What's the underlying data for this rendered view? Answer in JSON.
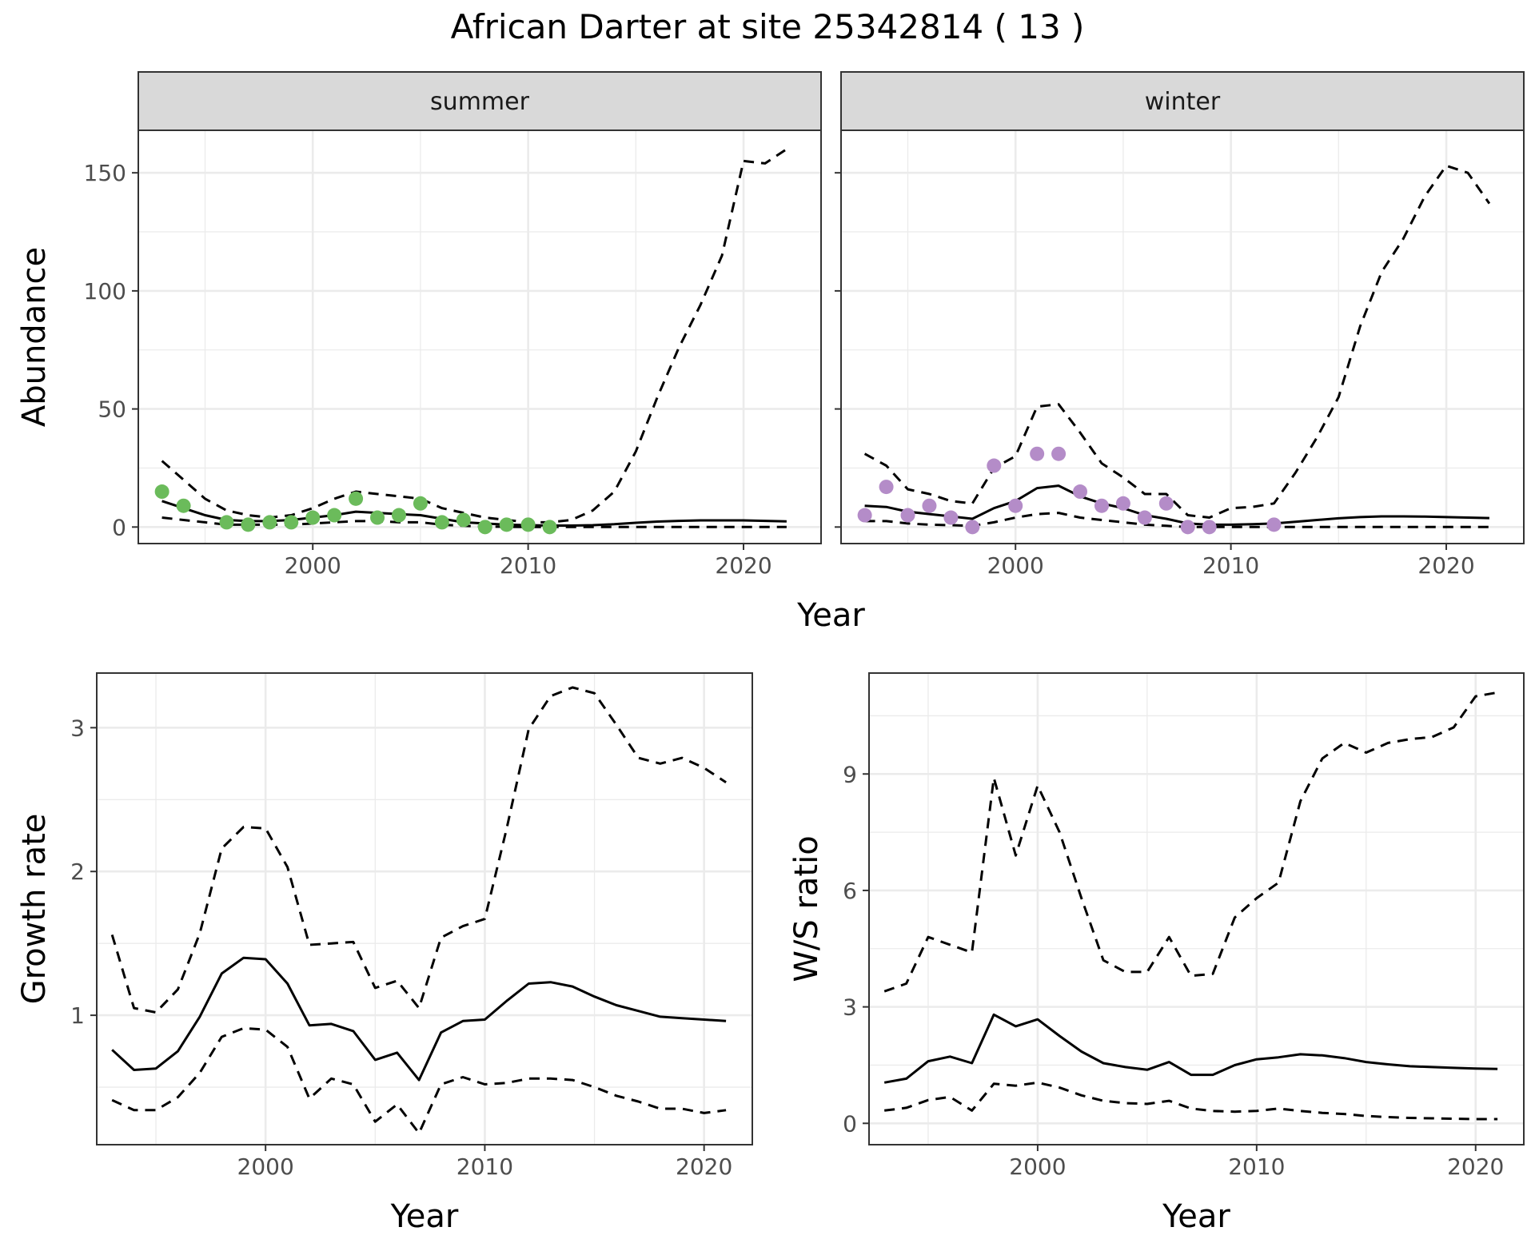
{
  "title": "African Darter at site 25342814 ( 13 )",
  "colors": {
    "summer_points": "#6BBB5B",
    "winter_points": "#B48CC8",
    "strip_fill": "#D9D9D9",
    "grid": "#EBEBEB",
    "line": "#000000"
  },
  "chart_data": [
    {
      "type": "line",
      "xlabel": "Year",
      "ylabel": "Abundance",
      "ylim": [
        -7,
        168
      ],
      "xlim": [
        1991.9,
        2023.6
      ],
      "xticks": [
        2000,
        2010,
        2020
      ],
      "yticks": [
        0,
        50,
        100,
        150
      ],
      "grid": true,
      "facets": [
        {
          "strip": "summer",
          "estimate": {
            "x": [
              1993,
              1994,
              1995,
              1996,
              1997,
              1998,
              1999,
              2000,
              2001,
              2002,
              2003,
              2004,
              2005,
              2006,
              2007,
              2008,
              2009,
              2010,
              2011,
              2012,
              2013,
              2014,
              2015,
              2016,
              2017,
              2018,
              2019,
              2020,
              2021,
              2022
            ],
            "y": [
              11,
              8,
              5,
              3,
              2.5,
              2.5,
              3,
              4,
              5,
              6.5,
              6,
              5.5,
              5,
              3.5,
              2,
              1.5,
              1,
              0.8,
              0.6,
              0.6,
              0.8,
              1.2,
              1.8,
              2.3,
              2.6,
              2.8,
              2.8,
              2.8,
              2.6,
              2.4
            ]
          },
          "upper": {
            "x": [
              1993,
              1994,
              1995,
              1996,
              1997,
              1998,
              1999,
              2000,
              2001,
              2002,
              2003,
              2004,
              2005,
              2006,
              2007,
              2008,
              2009,
              2010,
              2011,
              2012,
              2013,
              2014,
              2015,
              2016,
              2017,
              2018,
              2019,
              2020,
              2021,
              2022
            ],
            "y": [
              28,
              20,
              12,
              7,
              5,
              4,
              5,
              8,
              12,
              15,
              14,
              13,
              12,
              8,
              6,
              4,
              3,
              2,
              2,
              3,
              7,
              15,
              32,
              55,
              76,
              94,
              115,
              155,
              154,
              160
            ]
          },
          "lower": {
            "x": [
              1993,
              1994,
              1995,
              1996,
              1997,
              1998,
              1999,
              2000,
              2001,
              2002,
              2003,
              2004,
              2005,
              2006,
              2007,
              2008,
              2009,
              2010,
              2011,
              2012,
              2013,
              2014,
              2015,
              2016,
              2017,
              2018,
              2019,
              2020,
              2021,
              2022
            ],
            "y": [
              4,
              3,
              2,
              1,
              1,
              1,
              1,
              1.5,
              2,
              2.5,
              2.5,
              2,
              2,
              1,
              0.5,
              0.2,
              0.1,
              0,
              0,
              0,
              0,
              0,
              0,
              0,
              0,
              0,
              0,
              0,
              0,
              0
            ]
          },
          "observed": {
            "x": [
              1993,
              1994,
              1996,
              1997,
              1998,
              1999,
              2000,
              2001,
              2002,
              2003,
              2004,
              2005,
              2006,
              2007,
              2008,
              2009,
              2010,
              2011
            ],
            "y": [
              15,
              9,
              2,
              1,
              2,
              2,
              4,
              5,
              12,
              4,
              5,
              10,
              2,
              3,
              0,
              1,
              1,
              0
            ]
          }
        },
        {
          "strip": "winter",
          "estimate": {
            "x": [
              1993,
              1994,
              1995,
              1996,
              1997,
              1998,
              1999,
              2000,
              2001,
              2002,
              2003,
              2004,
              2005,
              2006,
              2007,
              2008,
              2009,
              2010,
              2011,
              2012,
              2013,
              2014,
              2015,
              2016,
              2017,
              2018,
              2019,
              2020,
              2021,
              2022
            ],
            "y": [
              9,
              8.5,
              6.5,
              5.5,
              4.5,
              3.5,
              8,
              11,
              16.5,
              17.5,
              13,
              10,
              8,
              5,
              3.5,
              1.5,
              1,
              1,
              1.2,
              1.5,
              2.2,
              3,
              3.7,
              4.2,
              4.5,
              4.5,
              4.4,
              4.2,
              4,
              3.8
            ]
          },
          "upper": {
            "x": [
              1993,
              1994,
              1995,
              1996,
              1997,
              1998,
              1999,
              2000,
              2001,
              2002,
              2003,
              2004,
              2005,
              2006,
              2007,
              2008,
              2009,
              2010,
              2011,
              2012,
              2013,
              2014,
              2015,
              2016,
              2017,
              2018,
              2019,
              2020,
              2021,
              2022
            ],
            "y": [
              31,
              26,
              16,
              14,
              11,
              10,
              25,
              30,
              51,
              52,
              40,
              27,
              21,
              14,
              14,
              5,
              4,
              8,
              8.5,
              10,
              23,
              38,
              55,
              85,
              108,
              122,
              140,
              153,
              150,
              137
            ]
          },
          "lower": {
            "x": [
              1993,
              1994,
              1995,
              1996,
              1997,
              1998,
              1999,
              2000,
              2001,
              2002,
              2003,
              2004,
              2005,
              2006,
              2007,
              2008,
              2009,
              2010,
              2011,
              2012,
              2013,
              2014,
              2015,
              2016,
              2017,
              2018,
              2019,
              2020,
              2021,
              2022
            ],
            "y": [
              2.5,
              2.5,
              1.5,
              1,
              0.8,
              0.5,
              2,
              4,
              5.5,
              6,
              4,
              3,
              2,
              1,
              0.5,
              0,
              0,
              0,
              0,
              0,
              0,
              0,
              0,
              0,
              0,
              0,
              0,
              0,
              0,
              0
            ]
          },
          "observed": {
            "x": [
              1993,
              1994,
              1995,
              1996,
              1997,
              1998,
              1999,
              2000,
              2001,
              2002,
              2003,
              2004,
              2005,
              2006,
              2007,
              2008,
              2009,
              2012
            ],
            "y": [
              5,
              17,
              5,
              9,
              4,
              0,
              26,
              9,
              31,
              31,
              15,
              9,
              10,
              4,
              10,
              0,
              0,
              1
            ]
          }
        }
      ]
    },
    {
      "type": "line",
      "xlabel": "Year",
      "ylabel": "Growth rate",
      "ylim": [
        0.1,
        3.38
      ],
      "xlim": [
        1992.3,
        2022.2
      ],
      "xticks": [
        2000,
        2010,
        2020
      ],
      "yticks": [
        1,
        2,
        3
      ],
      "grid": true,
      "estimate": {
        "x": [
          1993,
          1994,
          1995,
          1996,
          1997,
          1998,
          1999,
          2000,
          2001,
          2002,
          2003,
          2004,
          2005,
          2006,
          2007,
          2008,
          2009,
          2010,
          2011,
          2012,
          2013,
          2014,
          2015,
          2016,
          2017,
          2018,
          2019,
          2020,
          2021
        ],
        "y": [
          0.76,
          0.62,
          0.63,
          0.75,
          0.99,
          1.29,
          1.4,
          1.39,
          1.22,
          0.93,
          0.94,
          0.89,
          0.69,
          0.74,
          0.55,
          0.88,
          0.96,
          0.97,
          1.1,
          1.22,
          1.23,
          1.2,
          1.13,
          1.07,
          1.03,
          0.99,
          0.98,
          0.97,
          0.96
        ]
      },
      "upper": {
        "x": [
          1993,
          1994,
          1995,
          1996,
          1997,
          1998,
          1999,
          2000,
          2001,
          2002,
          2003,
          2004,
          2005,
          2006,
          2007,
          2008,
          2009,
          2010,
          2011,
          2012,
          2013,
          2014,
          2015,
          2016,
          2017,
          2018,
          2019,
          2020,
          2021
        ],
        "y": [
          1.56,
          1.05,
          1.02,
          1.18,
          1.57,
          2.16,
          2.31,
          2.3,
          2.03,
          1.49,
          1.5,
          1.51,
          1.19,
          1.24,
          1.05,
          1.54,
          1.62,
          1.67,
          2.3,
          2.99,
          3.22,
          3.28,
          3.24,
          3.02,
          2.79,
          2.75,
          2.79,
          2.72,
          2.62
        ]
      },
      "lower": {
        "x": [
          1993,
          1994,
          1995,
          1996,
          1997,
          1998,
          1999,
          2000,
          2001,
          2002,
          2003,
          2004,
          2005,
          2006,
          2007,
          2008,
          2009,
          2010,
          2011,
          2012,
          2013,
          2014,
          2015,
          2016,
          2017,
          2018,
          2019,
          2020,
          2021
        ],
        "y": [
          0.41,
          0.34,
          0.34,
          0.43,
          0.6,
          0.85,
          0.91,
          0.9,
          0.78,
          0.42,
          0.56,
          0.52,
          0.26,
          0.38,
          0.18,
          0.52,
          0.57,
          0.52,
          0.53,
          0.56,
          0.56,
          0.55,
          0.5,
          0.44,
          0.4,
          0.35,
          0.35,
          0.32,
          0.34
        ]
      }
    },
    {
      "type": "line",
      "xlabel": "Year",
      "ylabel": "W/S ratio",
      "ylim": [
        -0.55,
        11.6
      ],
      "xlim": [
        1992.3,
        2022.2
      ],
      "xticks": [
        2000,
        2010,
        2020
      ],
      "yticks": [
        0,
        3,
        6,
        9
      ],
      "grid": true,
      "estimate": {
        "x": [
          1993,
          1994,
          1995,
          1996,
          1997,
          1998,
          1999,
          2000,
          2001,
          2002,
          2003,
          2004,
          2005,
          2006,
          2007,
          2008,
          2009,
          2010,
          2011,
          2012,
          2013,
          2014,
          2015,
          2016,
          2017,
          2018,
          2019,
          2020,
          2021
        ],
        "y": [
          1.05,
          1.15,
          1.6,
          1.72,
          1.55,
          2.8,
          2.5,
          2.68,
          2.25,
          1.85,
          1.55,
          1.45,
          1.38,
          1.58,
          1.25,
          1.25,
          1.5,
          1.65,
          1.7,
          1.78,
          1.75,
          1.68,
          1.58,
          1.52,
          1.47,
          1.45,
          1.43,
          1.41,
          1.4
        ]
      },
      "upper": {
        "x": [
          1993,
          1994,
          1995,
          1996,
          1997,
          1998,
          1999,
          2000,
          2001,
          2002,
          2003,
          2004,
          2005,
          2006,
          2007,
          2008,
          2009,
          2010,
          2011,
          2012,
          2013,
          2014,
          2015,
          2016,
          2017,
          2018,
          2019,
          2020,
          2021
        ],
        "y": [
          3.4,
          3.6,
          4.8,
          4.6,
          4.4,
          8.9,
          6.9,
          8.7,
          7.5,
          5.8,
          4.2,
          3.9,
          3.9,
          4.8,
          3.8,
          3.85,
          5.3,
          5.8,
          6.2,
          8.3,
          9.4,
          9.8,
          9.55,
          9.8,
          9.9,
          9.95,
          10.2,
          11.0,
          11.1
        ]
      },
      "lower": {
        "x": [
          1993,
          1994,
          1995,
          1996,
          1997,
          1998,
          1999,
          2000,
          2001,
          2002,
          2003,
          2004,
          2005,
          2006,
          2007,
          2008,
          2009,
          2010,
          2011,
          2012,
          2013,
          2014,
          2015,
          2016,
          2017,
          2018,
          2019,
          2020,
          2021
        ],
        "y": [
          0.33,
          0.4,
          0.6,
          0.68,
          0.33,
          1.02,
          0.97,
          1.05,
          0.92,
          0.72,
          0.58,
          0.52,
          0.5,
          0.58,
          0.38,
          0.32,
          0.3,
          0.32,
          0.38,
          0.32,
          0.27,
          0.24,
          0.19,
          0.16,
          0.14,
          0.13,
          0.12,
          0.11,
          0.11
        ]
      }
    }
  ]
}
